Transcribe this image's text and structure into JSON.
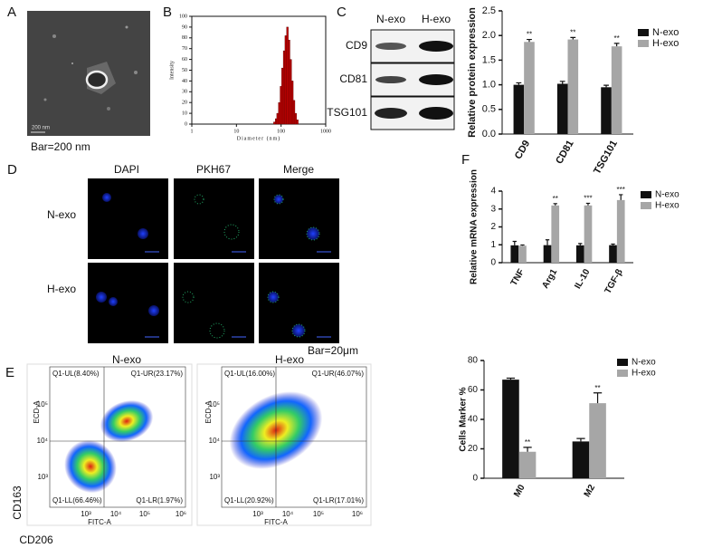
{
  "panels": {
    "letters": [
      "A",
      "B",
      "C",
      "D",
      "E",
      "F"
    ],
    "a_bar": "Bar=200 nm",
    "a_scale": "200 nm",
    "blot": {
      "lanes": [
        "N-exo",
        "H-exo"
      ],
      "rows": [
        "CD9",
        "CD81",
        "TSG101"
      ]
    },
    "d": {
      "columns": [
        "DAPI",
        "PKH67",
        "Merge"
      ],
      "rows": [
        "N-exo",
        "H-exo"
      ],
      "bar": "Bar=20μm"
    },
    "e": {
      "y_marker": "CD163",
      "x_marker": "CD206",
      "flow": [
        {
          "title": "N-exo",
          "quadrants": [
            "Q1-UL(8.40%)",
            "Q1-UR(23.17%)",
            "Q1-LL(66.46%)",
            "Q1-LR(1.97%)"
          ],
          "x_label": "FITC-A",
          "y_label": "ECD-A",
          "x_ticks": [
            "10³",
            "10⁴",
            "10⁵",
            "10⁶"
          ],
          "y_ticks": [
            "10³",
            "10⁴",
            "10⁵"
          ]
        },
        {
          "title": "H-exo",
          "quadrants": [
            "Q1-UL(16.00%)",
            "Q1-UR(46.07%)",
            "Q1-LL(20.92%)",
            "Q1-LR(17.01%)"
          ],
          "x_label": "FITC-A",
          "y_label": "ECD-A",
          "x_ticks": [
            "10³",
            "10⁴",
            "10⁵",
            "10⁶"
          ],
          "y_ticks": [
            "10³",
            "10⁴",
            "10⁵"
          ]
        }
      ]
    }
  },
  "chart_data": [
    {
      "type": "histogram",
      "x_label": "Diameter (nm)",
      "y_label": "Intensity",
      "log_x": true,
      "bins": [
        68,
        74,
        80,
        87,
        95,
        103,
        112,
        122,
        133,
        145,
        158,
        172,
        187,
        204,
        222,
        242
      ],
      "values": [
        2,
        5,
        10,
        20,
        35,
        52,
        68,
        82,
        90,
        78,
        60,
        40,
        22,
        10,
        4
      ],
      "color": "#c00000",
      "xlim": [
        1,
        1000
      ],
      "xticks": [
        1,
        10,
        100,
        1000
      ],
      "ylim": [
        0,
        100
      ],
      "yticks": [
        0,
        10,
        20,
        30,
        40,
        50,
        60,
        70,
        80,
        90,
        100
      ]
    },
    {
      "type": "bar",
      "y_label": "Relative protein expression",
      "categories": [
        "CD9",
        "CD81",
        "TSG101"
      ],
      "series": [
        {
          "name": "N-exo",
          "color": "#111111",
          "values": [
            1.0,
            1.02,
            0.95
          ],
          "errors": [
            0.04,
            0.05,
            0.04
          ]
        },
        {
          "name": "H-exo",
          "color": "#a6a6a6",
          "values": [
            1.87,
            1.92,
            1.78
          ],
          "errors": [
            0.05,
            0.04,
            0.06
          ],
          "annotations": [
            "**",
            "**",
            "**"
          ]
        }
      ],
      "ylim": [
        0,
        2.5
      ],
      "yticks": [
        {
          "value": 0,
          "label": "0.0"
        },
        0.5,
        {
          "value": 1,
          "label": "1.0"
        },
        1.5,
        {
          "value": 2,
          "label": "2.0"
        },
        2.5
      ],
      "legend": "right"
    },
    {
      "type": "bar",
      "y_label": "Relative mRNA expression",
      "categories": [
        "TNF",
        "Arg1",
        "IL-10",
        "TGF-β"
      ],
      "series": [
        {
          "name": "N-exo",
          "color": "#111111",
          "values": [
            0.97,
            0.98,
            0.97,
            0.98
          ],
          "errors": [
            0.22,
            0.3,
            0.1,
            0.06
          ]
        },
        {
          "name": "H-exo",
          "color": "#a6a6a6",
          "values": [
            0.95,
            3.2,
            3.2,
            3.5
          ],
          "errors": [
            0.04,
            0.1,
            0.12,
            0.3
          ],
          "annotations": [
            null,
            "**",
            "***",
            "***"
          ]
        }
      ],
      "ylim": [
        0,
        4
      ],
      "yticks": [
        0,
        1,
        2,
        3,
        4
      ],
      "legend": "right"
    },
    {
      "type": "bar",
      "y_label": "Cells Marker %",
      "categories": [
        "M0",
        "M2"
      ],
      "series": [
        {
          "name": "N-exo",
          "color": "#111111",
          "values": [
            67,
            25
          ],
          "errors": [
            1,
            2
          ]
        },
        {
          "name": "H-exo",
          "color": "#a6a6a6",
          "values": [
            18,
            51
          ],
          "errors": [
            3,
            7
          ],
          "annotations": [
            "**",
            "**"
          ]
        }
      ],
      "ylim": [
        0,
        80
      ],
      "yticks": [
        0,
        20,
        40,
        60,
        80
      ],
      "legend": "right"
    }
  ]
}
